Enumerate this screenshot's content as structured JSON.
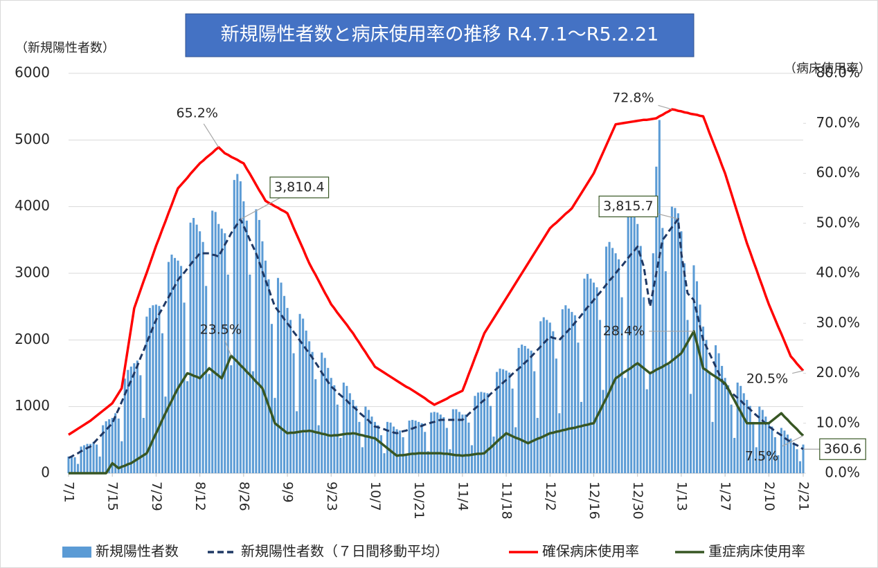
{
  "chart_data": {
    "type": "bar",
    "title": "新規陽性者数と病床使用率の推移 R4.7.1～R5.2.21",
    "ylabel": "（新規陽性者数）",
    "y2label": "（病床使用率）",
    "categories": [
      "7/1",
      null,
      null,
      null,
      null,
      null,
      null,
      null,
      null,
      null,
      null,
      null,
      null,
      null,
      "7/15",
      null,
      null,
      null,
      null,
      null,
      null,
      null,
      null,
      null,
      null,
      null,
      null,
      null,
      "7/29",
      null,
      null,
      null,
      null,
      null,
      null,
      null,
      null,
      null,
      null,
      null,
      null,
      null,
      "8/12",
      null,
      null,
      null,
      null,
      null,
      null,
      null,
      null,
      null,
      null,
      null,
      null,
      null,
      "8/26",
      null,
      null,
      null,
      null,
      null,
      null,
      null,
      null,
      null,
      null,
      null,
      null,
      null,
      "9/9",
      null,
      null,
      null,
      null,
      null,
      null,
      null,
      null,
      null,
      null,
      null,
      null,
      null,
      "9/23",
      null,
      null,
      null,
      null,
      null,
      null,
      null,
      null,
      null,
      null,
      null,
      null,
      null,
      "10/7",
      null,
      null,
      null,
      null,
      null,
      null,
      null,
      null,
      null,
      null,
      null,
      null,
      null,
      "10/21",
      null,
      null,
      null,
      null,
      null,
      null,
      null,
      null,
      null,
      null,
      null,
      null,
      null,
      "11/4",
      null,
      null,
      null,
      null,
      null,
      null,
      null,
      null,
      null,
      null,
      null,
      null,
      null,
      "11/18",
      null,
      null,
      null,
      null,
      null,
      null,
      null,
      null,
      null,
      null,
      null,
      null,
      null,
      "12/2",
      null,
      null,
      null,
      null,
      null,
      null,
      null,
      null,
      null,
      null,
      null,
      null,
      null,
      "12/16",
      null,
      null,
      null,
      null,
      null,
      null,
      null,
      null,
      null,
      null,
      null,
      null,
      null,
      "12/30",
      null,
      null,
      null,
      null,
      null,
      null,
      null,
      null,
      null,
      null,
      null,
      null,
      null,
      "1/13",
      null,
      null,
      null,
      null,
      null,
      null,
      null,
      null,
      null,
      null,
      null,
      null,
      null,
      "1/27",
      null,
      null,
      null,
      null,
      null,
      null,
      null,
      null,
      null,
      null,
      null,
      null,
      null,
      "2/10",
      null,
      null,
      null,
      null,
      null,
      null,
      null,
      null,
      null,
      null,
      "2/21"
    ],
    "ylim": [
      0,
      6000
    ],
    "yticks": [
      0,
      1000,
      2000,
      3000,
      4000,
      5000,
      6000
    ],
    "y2lim": [
      0,
      80
    ],
    "y2ticks": [
      {
        "value": 0,
        "label": "0.0%"
      },
      {
        "value": 10,
        "label": "10.0%"
      },
      {
        "value": 20,
        "label": "20.0%"
      },
      {
        "value": 30,
        "label": "30.0%"
      },
      {
        "value": 40,
        "label": "40.0%"
      },
      {
        "value": 50,
        "label": "50.0%"
      },
      {
        "value": 60,
        "label": "60.0%"
      },
      {
        "value": 70,
        "label": "70.0%"
      },
      {
        "value": 80,
        "label": "80.0%"
      }
    ],
    "grid": true,
    "legend": "bottom",
    "series": [
      {
        "name": "新規陽性者数",
        "type": "bar",
        "color": "#5b9bd5",
        "values": [
          250,
          260,
          240,
          140,
          400,
          420,
          440,
          440,
          470,
          430,
          250,
          720,
          780,
          810,
          830,
          900,
          820,
          480,
          1420,
          1550,
          1600,
          1650,
          1690,
          1470,
          830,
          2350,
          2480,
          2520,
          2530,
          2510,
          2100,
          1150,
          3170,
          3280,
          3230,
          3190,
          3110,
          2560,
          1380,
          3760,
          3830,
          3730,
          3630,
          3470,
          2810,
          1490,
          3940,
          3920,
          3740,
          3670,
          3600,
          2980,
          1620,
          4400,
          4490,
          4380,
          4080,
          3790,
          2980,
          1530,
          3960,
          3800,
          3480,
          3190,
          2910,
          2240,
          1130,
          2930,
          2860,
          2660,
          2480,
          2300,
          1800,
          930,
          2390,
          2320,
          2140,
          1980,
          1820,
          1410,
          720,
          1810,
          1730,
          1580,
          1430,
          1320,
          1030,
          530,
          1360,
          1310,
          1200,
          1100,
          1010,
          770,
          390,
          1000,
          950,
          850,
          770,
          720,
          570,
          300,
          770,
          760,
          700,
          660,
          640,
          540,
          290,
          790,
          800,
          790,
          770,
          750,
          620,
          330,
          910,
          920,
          910,
          880,
          840,
          680,
          360,
          960,
          960,
          920,
          880,
          880,
          760,
          420,
          1160,
          1210,
          1220,
          1210,
          1200,
          1010,
          550,
          1520,
          1570,
          1560,
          1540,
          1510,
          1270,
          690,
          1880,
          1930,
          1910,
          1870,
          1840,
          1530,
          830,
          2280,
          2340,
          2300,
          2260,
          2130,
          1720,
          900,
          2460,
          2520,
          2470,
          2420,
          2370,
          1960,
          1070,
          2920,
          2990,
          2920,
          2860,
          2790,
          2300,
          1250,
          3400,
          3470,
          3380,
          3300,
          3210,
          2640,
          1430,
          3880,
          3950,
          3840,
          3740,
          3410,
          2640,
          1260,
          1500,
          3300,
          4600,
          5300,
          3680,
          3030,
          1630,
          4000,
          3980,
          3900,
          3630,
          3150,
          2300,
          1190,
          3120,
          2880,
          2530,
          2200,
          2000,
          1530,
          770,
          1920,
          1800,
          1610,
          1430,
          1320,
          1030,
          530,
          1360,
          1310,
          1200,
          1100,
          1010,
          770,
          390,
          1000,
          950,
          850,
          770,
          700,
          540,
          270,
          680,
          640,
          580,
          520,
          460,
          360,
          180,
          430
        ]
      },
      {
        "name": "新規陽性者数（７日間移動平均）",
        "type": "line",
        "dash": true,
        "label_box": true,
        "color": "#1f3864",
        "values": [
          230,
          250,
          280,
          300,
          330,
          350,
          380,
          400,
          450,
          500,
          550,
          600,
          650,
          700,
          750,
          860,
          960,
          1070,
          1180,
          1290,
          1390,
          1500,
          1610,
          1730,
          1840,
          1960,
          2070,
          2190,
          2300,
          2390,
          2470,
          2560,
          2640,
          2730,
          2810,
          2900,
          2960,
          3010,
          3070,
          3130,
          3190,
          3240,
          3300,
          3300,
          3300,
          3300,
          3280,
          3270,
          3250,
          3340,
          3430,
          3510,
          3600,
          3670,
          3740,
          3810.4,
          3710,
          3610,
          3500,
          3400,
          3300,
          3170,
          3030,
          2900,
          2770,
          2630,
          2500,
          2440,
          2380,
          2310,
          2250,
          2190,
          2120,
          2060,
          1990,
          1930,
          1860,
          1800,
          1730,
          1660,
          1590,
          1510,
          1440,
          1370,
          1300,
          1260,
          1210,
          1170,
          1130,
          1090,
          1040,
          1000,
          960,
          910,
          870,
          830,
          790,
          740,
          700,
          690,
          670,
          660,
          640,
          630,
          610,
          600,
          610,
          630,
          640,
          660,
          670,
          690,
          700,
          710,
          730,
          740,
          760,
          770,
          790,
          800,
          800,
          800,
          800,
          800,
          800,
          800,
          800,
          840,
          890,
          930,
          970,
          1010,
          1060,
          1100,
          1140,
          1190,
          1230,
          1270,
          1310,
          1360,
          1400,
          1440,
          1490,
          1530,
          1570,
          1610,
          1660,
          1700,
          1750,
          1800,
          1850,
          1900,
          1950,
          2000,
          2050,
          2030,
          2020,
          2000,
          2050,
          2100,
          2150,
          2200,
          2260,
          2310,
          2370,
          2430,
          2490,
          2540,
          2600,
          2660,
          2710,
          2770,
          2830,
          2890,
          2940,
          3000,
          3060,
          3110,
          3170,
          3230,
          3290,
          3340,
          3400,
          3250,
          3100,
          2800,
          2500,
          2750,
          3000,
          3250,
          3500,
          3560,
          3630,
          3690,
          3750,
          3815.7,
          3300,
          3000,
          2700,
          2650,
          2600,
          2400,
          2200,
          2000,
          1900,
          1800,
          1700,
          1600,
          1500,
          1400,
          1300,
          1260,
          1210,
          1170,
          1130,
          1090,
          1040,
          1000,
          960,
          910,
          870,
          830,
          790,
          740,
          700,
          670,
          630,
          600,
          570,
          530,
          500,
          470,
          440,
          420,
          390,
          360.6
        ],
        "value_labels": {
          "55": "3,810.4",
          "195": "3,815.7",
          "235": "360.6"
        }
      },
      {
        "name": "確保病床使用率",
        "type": "line",
        "axis": "y2",
        "color": "#ff0000",
        "values": [
          7.7,
          8.1,
          8.5,
          8.9,
          9.3,
          9.7,
          10.1,
          10.5,
          11.0,
          11.5,
          12.0,
          12.5,
          13.0,
          13.5,
          14.0,
          15.0,
          16.0,
          17.0,
          21.0,
          25.0,
          29.0,
          33.0,
          34.8,
          36.6,
          38.4,
          40.1,
          41.9,
          43.7,
          45.5,
          47.1,
          48.8,
          50.4,
          52.1,
          53.7,
          55.4,
          57.0,
          57.7,
          58.4,
          59.1,
          59.9,
          60.6,
          61.3,
          62.0,
          62.5,
          63.1,
          63.6,
          64.1,
          64.7,
          65.2,
          64.6,
          64.0,
          63.7,
          63.3,
          63.0,
          62.7,
          62.3,
          62.0,
          60.9,
          59.9,
          58.8,
          57.7,
          56.6,
          55.6,
          54.5,
          54.1,
          53.8,
          53.4,
          53.1,
          52.7,
          52.4,
          52.0,
          50.6,
          49.1,
          47.7,
          46.3,
          44.9,
          43.4,
          42.0,
          40.8,
          39.7,
          38.5,
          37.3,
          36.1,
          35.0,
          33.8,
          33.0,
          32.1,
          31.3,
          30.5,
          29.7,
          28.8,
          28.0,
          27.0,
          26.1,
          25.1,
          24.2,
          23.2,
          22.3,
          21.3,
          20.9,
          20.5,
          20.1,
          19.7,
          19.3,
          18.9,
          18.5,
          18.1,
          17.7,
          17.3,
          17.0,
          16.6,
          16.2,
          15.8,
          15.4,
          15.0,
          14.5,
          14.1,
          13.7,
          14.0,
          14.3,
          14.6,
          14.9,
          15.3,
          15.6,
          15.9,
          16.2,
          16.5,
          18.1,
          19.8,
          21.4,
          23.1,
          24.7,
          26.4,
          28.0,
          29.0,
          30.0,
          31.0,
          32.0,
          33.0,
          34.0,
          35.0,
          36.0,
          37.0,
          38.0,
          39.0,
          40.0,
          41.0,
          42.0,
          43.0,
          44.0,
          45.0,
          46.0,
          47.0,
          48.0,
          49.0,
          49.6,
          50.1,
          50.7,
          51.3,
          51.9,
          52.4,
          53.0,
          54.0,
          55.0,
          56.0,
          57.0,
          58.0,
          59.0,
          60.0,
          61.4,
          62.8,
          64.2,
          65.6,
          67.0,
          68.4,
          69.8,
          69.9,
          70.0,
          70.1,
          70.2,
          70.3,
          70.4,
          70.5,
          70.6,
          70.7,
          70.7,
          70.8,
          70.9,
          71.0,
          71.4,
          71.7,
          72.1,
          72.4,
          72.8,
          72.7,
          72.5,
          72.4,
          72.2,
          72.1,
          71.9,
          71.8,
          71.7,
          71.5,
          71.4,
          69.8,
          68.1,
          66.5,
          64.9,
          63.3,
          61.6,
          60.0,
          58.0,
          56.0,
          54.0,
          52.0,
          50.0,
          48.0,
          46.0,
          44.3,
          42.5,
          40.8,
          39.0,
          37.3,
          35.5,
          33.8,
          32.3,
          30.8,
          29.3,
          27.9,
          26.4,
          24.9,
          23.4,
          22.7,
          21.9,
          21.2,
          20.5
        ],
        "value_labels": {
          "48": "65.2%",
          "193": "72.8%",
          "235": "20.5%"
        }
      },
      {
        "name": "重症病床使用率",
        "type": "line",
        "axis": "y2",
        "color": "#375623",
        "values": [
          0,
          0,
          0,
          0,
          0,
          0,
          0,
          0,
          0,
          0,
          0,
          0,
          0,
          1,
          2,
          1.5,
          1,
          1.3,
          1.5,
          1.8,
          2,
          2.4,
          2.8,
          3.2,
          3.6,
          4,
          5.3,
          6.7,
          8,
          9.3,
          10.7,
          12,
          13.3,
          14.5,
          15.8,
          17,
          18,
          19,
          20,
          19.8,
          19.5,
          19.3,
          19,
          19.7,
          20.3,
          21,
          20.5,
          20,
          19.5,
          19,
          20.5,
          22,
          23.5,
          22.9,
          22.3,
          21.6,
          21,
          20.3,
          19.7,
          19,
          18.3,
          17.7,
          17,
          15.3,
          13.5,
          11.8,
          10,
          9.5,
          9,
          8.5,
          8,
          8.1,
          8.1,
          8.2,
          8.3,
          8.4,
          8.4,
          8.5,
          8.4,
          8.2,
          8.1,
          7.9,
          7.8,
          7.6,
          7.5,
          7.6,
          7.6,
          7.7,
          7.8,
          7.9,
          7.9,
          8,
          7.9,
          7.7,
          7.6,
          7.4,
          7.3,
          7.1,
          7,
          6.5,
          6,
          5.5,
          5,
          4.5,
          4,
          3.5,
          3.6,
          3.6,
          3.7,
          3.8,
          3.9,
          3.9,
          4,
          4,
          4,
          4,
          4,
          4,
          4,
          4,
          3.9,
          3.9,
          3.8,
          3.7,
          3.6,
          3.6,
          3.5,
          3.6,
          3.6,
          3.7,
          3.8,
          3.9,
          3.9,
          4,
          4.6,
          5.1,
          5.7,
          6.3,
          6.9,
          7.4,
          8,
          7.7,
          7.4,
          7.1,
          6.9,
          6.6,
          6.3,
          6,
          6.3,
          6.6,
          6.9,
          7.1,
          7.4,
          7.7,
          8,
          8.1,
          8.3,
          8.4,
          8.6,
          8.7,
          8.9,
          9,
          9.1,
          9.3,
          9.4,
          9.6,
          9.7,
          9.9,
          10,
          11.3,
          12.5,
          13.8,
          15,
          16.3,
          17.7,
          19,
          19.4,
          19.9,
          20.3,
          20.7,
          21.1,
          21.6,
          22,
          21.5,
          21,
          20.5,
          20,
          20.3,
          20.7,
          21,
          21.3,
          21.7,
          22,
          22.5,
          23,
          23.5,
          24,
          25.1,
          26.2,
          27.3,
          28.4,
          26,
          23.5,
          21,
          20.6,
          20.1,
          19.7,
          19.3,
          18.9,
          18.4,
          18,
          16.9,
          15.7,
          14.6,
          13.4,
          12.3,
          11.1,
          10,
          10,
          10,
          10,
          10,
          10,
          10,
          10,
          10.5,
          11,
          11.5,
          12,
          11.3,
          10.7,
          10,
          9.4,
          8.8,
          8.1,
          7.5
        ],
        "value_labels": {
          "52": "23.5%",
          "200": "28.4%",
          "235": "7.5%"
        }
      }
    ]
  }
}
